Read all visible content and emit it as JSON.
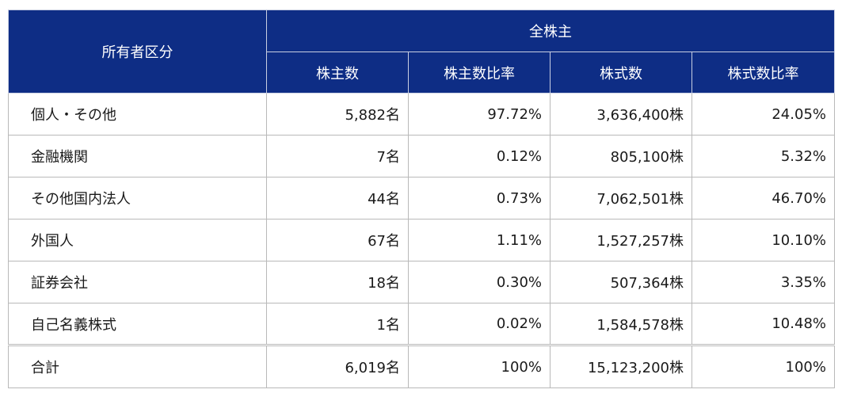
{
  "header": {
    "category": "所有者区分",
    "group": "全株主",
    "columns": [
      "株主数",
      "株主数比率",
      "株式数",
      "株式数比率"
    ]
  },
  "rows": [
    {
      "label": "個人・その他",
      "holders": "5,882名",
      "holders_ratio": "97.72%",
      "shares": "3,636,400株",
      "shares_ratio": "24.05%"
    },
    {
      "label": "金融機関",
      "holders": "7名",
      "holders_ratio": "0.12%",
      "shares": "805,100株",
      "shares_ratio": "5.32%"
    },
    {
      "label": "その他国内法人",
      "holders": "44名",
      "holders_ratio": "0.73%",
      "shares": "7,062,501株",
      "shares_ratio": "46.70%"
    },
    {
      "label": "外国人",
      "holders": "67名",
      "holders_ratio": "1.11%",
      "shares": "1,527,257株",
      "shares_ratio": "10.10%"
    },
    {
      "label": "証券会社",
      "holders": "18名",
      "holders_ratio": "0.30%",
      "shares": "507,364株",
      "shares_ratio": "3.35%"
    },
    {
      "label": "自己名義株式",
      "holders": "1名",
      "holders_ratio": "0.02%",
      "shares": "1,584,578株",
      "shares_ratio": "10.48%"
    }
  ],
  "total": {
    "label": "合計",
    "holders": "6,019名",
    "holders_ratio": "100%",
    "shares": "15,123,200株",
    "shares_ratio": "100%"
  },
  "colors": {
    "header_bg": "#0e2d85",
    "header_text": "#ffffff",
    "border": "#b9b9b9"
  }
}
